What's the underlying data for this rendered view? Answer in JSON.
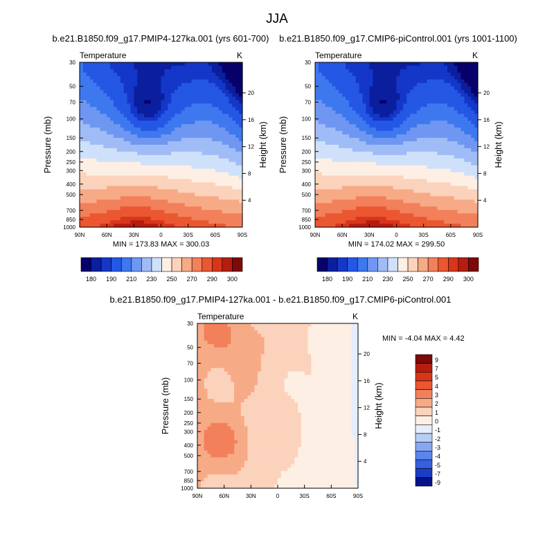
{
  "figure": {
    "title": "JJA"
  },
  "chart_data": [
    {
      "type": "heatmap",
      "title": "b.e21.B1850.f09_g17.PMIP4-127ka.001 (yrs 601-700)",
      "left_label": "Temperature",
      "units": "K",
      "ylabel": "Pressure (mb)",
      "ylabel_right": "Height (km)",
      "x_ticks": [
        "90N",
        "60N",
        "30N",
        "0",
        "30S",
        "60S",
        "90S"
      ],
      "y_ticks": [
        30,
        50,
        70,
        100,
        150,
        200,
        250,
        300,
        400,
        500,
        700,
        850,
        1000
      ],
      "y_ticks_right": [
        20,
        16,
        12,
        8,
        4
      ],
      "min_max": "MIN = 173.83  MAX = 300.03",
      "colorbar_labels": [
        "180",
        "190",
        "210",
        "230",
        "250",
        "270",
        "290",
        "300"
      ]
    },
    {
      "type": "heatmap",
      "title": "b.e21.B1850.f09_g17.CMIP6-piControl.001 (yrs 1001-1100)",
      "left_label": "Temperature",
      "units": "K",
      "ylabel": "Pressure (mb)",
      "ylabel_right": "Height (km)",
      "x_ticks": [
        "90N",
        "60N",
        "30N",
        "0",
        "30S",
        "60S",
        "90S"
      ],
      "y_ticks": [
        30,
        50,
        70,
        100,
        150,
        200,
        250,
        300,
        400,
        500,
        700,
        850,
        1000
      ],
      "y_ticks_right": [
        20,
        16,
        12,
        8,
        4
      ],
      "min_max": "MIN = 174.02  MAX = 299.50",
      "colorbar_labels": [
        "180",
        "190",
        "210",
        "230",
        "250",
        "270",
        "290",
        "300"
      ]
    },
    {
      "type": "heatmap",
      "title": "b.e21.B1850.f09_g17.PMIP4-127ka.001 - b.e21.B1850.f09_g17.CMIP6-piControl.001",
      "left_label": "Temperature",
      "units": "K",
      "ylabel": "Pressure (mb)",
      "ylabel_right": "Height (km)",
      "x_ticks": [
        "90N",
        "60N",
        "30N",
        "0",
        "30S",
        "60S",
        "90S"
      ],
      "y_ticks": [
        30,
        50,
        70,
        100,
        150,
        200,
        250,
        300,
        400,
        500,
        700,
        850,
        1000
      ],
      "y_ticks_right": [
        20,
        16,
        12,
        8,
        4
      ],
      "min_max": "MIN =  -4.04  MAX =   4.42",
      "colorbar_labels": [
        "9",
        "7",
        "5",
        "4",
        "3",
        "2",
        "1",
        "0",
        "-1",
        "-2",
        "-3",
        "-4",
        "-5",
        "-7",
        "-9"
      ]
    }
  ],
  "colors": {
    "abs_scale": [
      "#08006b",
      "#0b1f9e",
      "#1437c8",
      "#2457e4",
      "#3e78ef",
      "#6f97f2",
      "#a0bcf6",
      "#cfe0fb",
      "#fdefe3",
      "#fbd2bb",
      "#f7aa86",
      "#f2805a",
      "#ea5730",
      "#d9351a",
      "#b51d10",
      "#7d0a08"
    ],
    "diff_scale": [
      "#7d0a08",
      "#b51d10",
      "#d9351a",
      "#ea5730",
      "#f2805a",
      "#f7aa86",
      "#fbd2bb",
      "#fdefe3",
      "#e6eefb",
      "#b7cdf6",
      "#86a8f2",
      "#5c86ec",
      "#3660e0",
      "#1a3cc6",
      "#06128c"
    ]
  }
}
